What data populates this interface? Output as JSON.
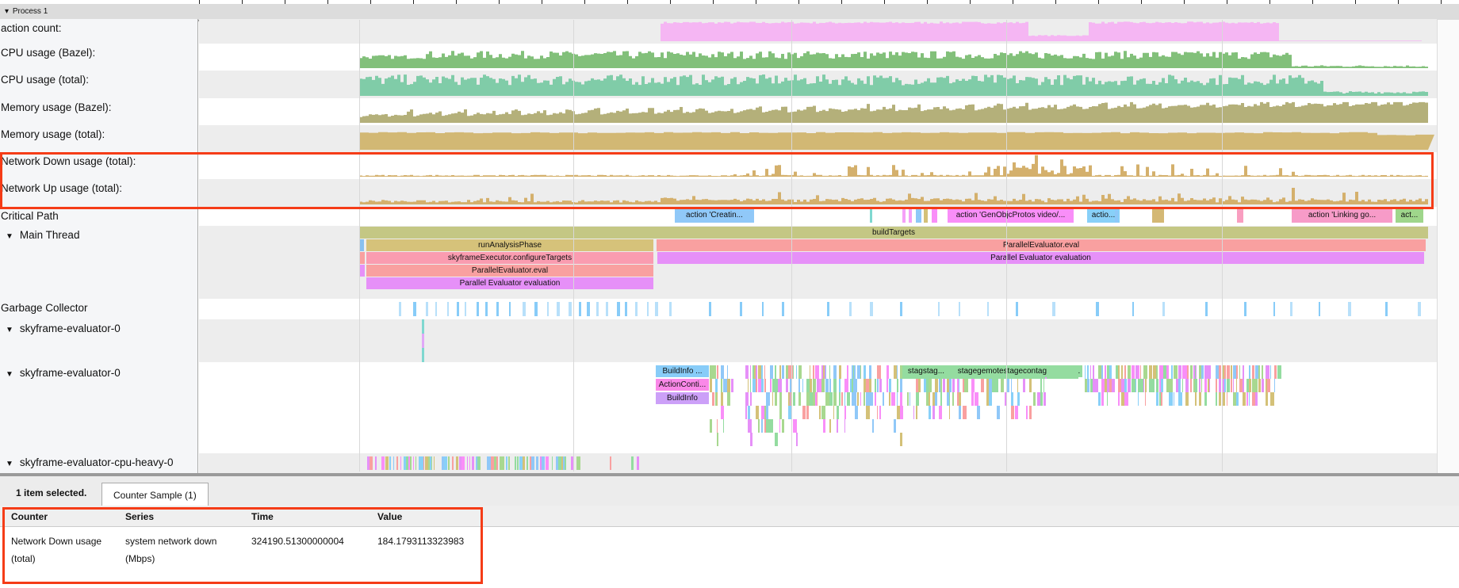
{
  "process": {
    "label": "Process 1"
  },
  "tracks": [
    {
      "label": "action count:",
      "color": "#f5b6f3"
    },
    {
      "label": "CPU usage (Bazel):",
      "color": "#82c07a"
    },
    {
      "label": "CPU usage (total):",
      "color": "#80cca8"
    },
    {
      "label": "Memory usage (Bazel):",
      "color": "#b4b07a"
    },
    {
      "label": "Memory usage (total):",
      "color": "#d2b874"
    },
    {
      "label": "Network Down usage (total):",
      "color": "#d4b06c"
    },
    {
      "label": "Network Up usage (total):",
      "color": "#d4b06c"
    }
  ],
  "threads": {
    "critical_path": "Critical Path",
    "main_thread": "Main Thread",
    "gc": "Garbage Collector",
    "eval0a": "skyframe-evaluator-0",
    "eval0b": "skyframe-evaluator-0",
    "cpu_heavy": "skyframe-evaluator-cpu-heavy-0"
  },
  "critical_path_slices": [
    {
      "name": "action 'Creatin...",
      "color": "#90c8f8"
    },
    {
      "name": "action 'GenObjcProtos video/...",
      "color": "#f98ef8"
    },
    {
      "name": "actio...",
      "color": "#88d0f8"
    },
    {
      "name": "action 'Linking go...",
      "color": "#f79bc8"
    },
    {
      "name": "act...",
      "color": "#9fd68b"
    }
  ],
  "main_slices": {
    "build_targets": "buildTargets",
    "run_analysis": "runAnalysisPhase",
    "parallel_eval_right": "ParallelEvaluator.eval",
    "configure_targets": "skyframeExecutor.configureTargets",
    "parallel_eval_eval_right": "Parallel Evaluator evaluation",
    "parallel_eval_left": "ParallelEvaluator.eval",
    "parallel_eval_eval_left": "Parallel Evaluator evaluation"
  },
  "eval_slices": {
    "build_info_1": "BuildInfo ...",
    "action_conti": "ActionConti...",
    "build_info_2": "BuildInfo",
    "stag_1": "stagstag...",
    "stag_2": "stagegemotestagecontage.remot..."
  },
  "details": {
    "selection": "1 item selected.",
    "tab": "Counter Sample (1)",
    "columns": [
      "Counter",
      "Series",
      "Time",
      "Value"
    ],
    "rows": [
      {
        "counter": "Network Down usage (total)",
        "series": "system network down (Mbps)",
        "time": "324190.51300000004",
        "value": "184.1793113323983"
      }
    ]
  },
  "colors": {
    "highlight": "#f53c17"
  }
}
